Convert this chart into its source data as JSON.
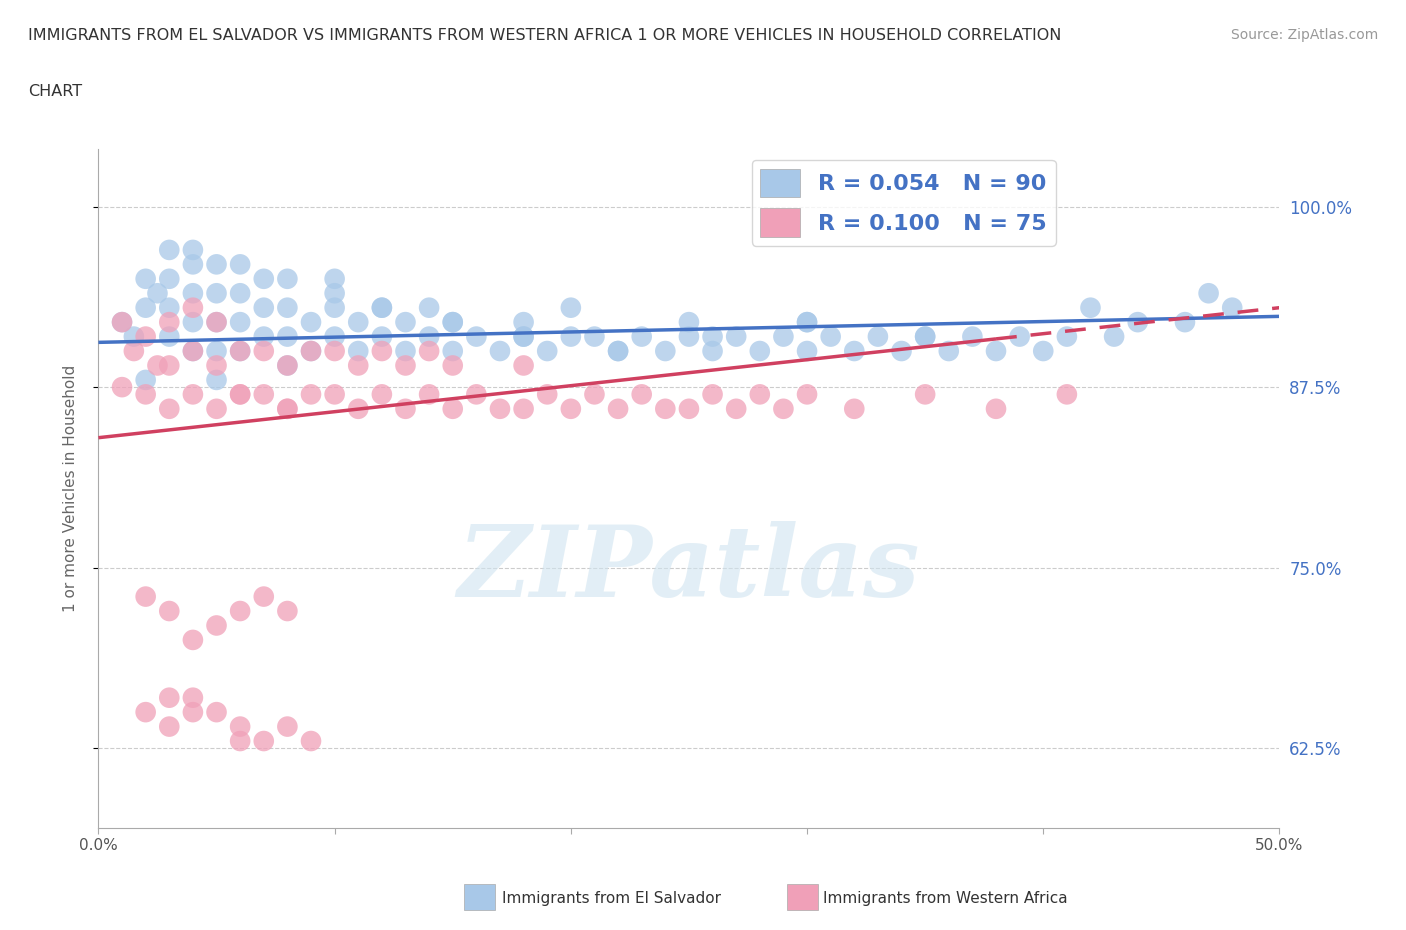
{
  "title_line1": "IMMIGRANTS FROM EL SALVADOR VS IMMIGRANTS FROM WESTERN AFRICA 1 OR MORE VEHICLES IN HOUSEHOLD CORRELATION",
  "title_line2": "CHART",
  "source_text": "Source: ZipAtlas.com",
  "ylabel": "1 or more Vehicles in Household",
  "xlim": [
    0.0,
    0.5
  ],
  "ylim": [
    0.57,
    1.04
  ],
  "xtick_positions": [
    0.0,
    0.1,
    0.2,
    0.3,
    0.4,
    0.5
  ],
  "xticklabels_show": [
    "0.0%",
    "",
    "",
    "",
    "",
    "50.0%"
  ],
  "ytick_positions": [
    0.625,
    0.75,
    0.875,
    1.0
  ],
  "ytick_labels": [
    "62.5%",
    "75.0%",
    "87.5%",
    "100.0%"
  ],
  "blue_R": 0.054,
  "blue_N": 90,
  "pink_R": 0.1,
  "pink_N": 75,
  "blue_color": "#a8c8e8",
  "pink_color": "#f0a0b8",
  "blue_line_color": "#4472c4",
  "pink_line_color": "#d04060",
  "legend_blue_label": "Immigrants from El Salvador",
  "legend_pink_label": "Immigrants from Western Africa",
  "watermark": "ZIPatlas",
  "blue_scatter_x": [
    0.01,
    0.015,
    0.02,
    0.02,
    0.025,
    0.03,
    0.03,
    0.03,
    0.03,
    0.04,
    0.04,
    0.04,
    0.04,
    0.05,
    0.05,
    0.05,
    0.05,
    0.05,
    0.06,
    0.06,
    0.06,
    0.07,
    0.07,
    0.07,
    0.08,
    0.08,
    0.08,
    0.09,
    0.09,
    0.1,
    0.1,
    0.1,
    0.11,
    0.11,
    0.12,
    0.12,
    0.13,
    0.13,
    0.14,
    0.14,
    0.15,
    0.15,
    0.16,
    0.17,
    0.18,
    0.18,
    0.19,
    0.2,
    0.2,
    0.21,
    0.22,
    0.23,
    0.24,
    0.25,
    0.25,
    0.26,
    0.27,
    0.28,
    0.29,
    0.3,
    0.3,
    0.31,
    0.32,
    0.33,
    0.34,
    0.35,
    0.36,
    0.37,
    0.38,
    0.39,
    0.4,
    0.41,
    0.43,
    0.44,
    0.46,
    0.48,
    0.02,
    0.04,
    0.06,
    0.08,
    0.1,
    0.12,
    0.15,
    0.18,
    0.22,
    0.26,
    0.3,
    0.35,
    0.42,
    0.47
  ],
  "blue_scatter_y": [
    0.92,
    0.91,
    0.95,
    0.93,
    0.94,
    0.91,
    0.93,
    0.95,
    0.97,
    0.9,
    0.92,
    0.94,
    0.96,
    0.88,
    0.9,
    0.92,
    0.94,
    0.96,
    0.9,
    0.92,
    0.94,
    0.91,
    0.93,
    0.95,
    0.89,
    0.91,
    0.93,
    0.9,
    0.92,
    0.91,
    0.93,
    0.95,
    0.9,
    0.92,
    0.91,
    0.93,
    0.9,
    0.92,
    0.91,
    0.93,
    0.9,
    0.92,
    0.91,
    0.9,
    0.92,
    0.91,
    0.9,
    0.91,
    0.93,
    0.91,
    0.9,
    0.91,
    0.9,
    0.91,
    0.92,
    0.9,
    0.91,
    0.9,
    0.91,
    0.92,
    0.9,
    0.91,
    0.9,
    0.91,
    0.9,
    0.91,
    0.9,
    0.91,
    0.9,
    0.91,
    0.9,
    0.91,
    0.91,
    0.92,
    0.92,
    0.93,
    0.88,
    0.97,
    0.96,
    0.95,
    0.94,
    0.93,
    0.92,
    0.91,
    0.9,
    0.91,
    0.92,
    0.91,
    0.93,
    0.94
  ],
  "pink_scatter_x": [
    0.01,
    0.01,
    0.015,
    0.02,
    0.02,
    0.025,
    0.03,
    0.03,
    0.03,
    0.04,
    0.04,
    0.04,
    0.05,
    0.05,
    0.05,
    0.06,
    0.06,
    0.06,
    0.07,
    0.07,
    0.08,
    0.08,
    0.08,
    0.09,
    0.09,
    0.1,
    0.1,
    0.11,
    0.11,
    0.12,
    0.12,
    0.13,
    0.13,
    0.14,
    0.14,
    0.15,
    0.15,
    0.16,
    0.17,
    0.18,
    0.18,
    0.19,
    0.2,
    0.21,
    0.22,
    0.23,
    0.24,
    0.25,
    0.26,
    0.27,
    0.28,
    0.29,
    0.3,
    0.32,
    0.35,
    0.38,
    0.41,
    0.02,
    0.03,
    0.04,
    0.05,
    0.06,
    0.07,
    0.08,
    0.02,
    0.03,
    0.03,
    0.04,
    0.04,
    0.05,
    0.06,
    0.06,
    0.07,
    0.08,
    0.09
  ],
  "pink_scatter_y": [
    0.875,
    0.92,
    0.9,
    0.87,
    0.91,
    0.89,
    0.86,
    0.89,
    0.92,
    0.87,
    0.9,
    0.93,
    0.86,
    0.89,
    0.92,
    0.87,
    0.9,
    0.87,
    0.87,
    0.9,
    0.86,
    0.89,
    0.86,
    0.87,
    0.9,
    0.87,
    0.9,
    0.86,
    0.89,
    0.87,
    0.9,
    0.86,
    0.89,
    0.87,
    0.9,
    0.86,
    0.89,
    0.87,
    0.86,
    0.89,
    0.86,
    0.87,
    0.86,
    0.87,
    0.86,
    0.87,
    0.86,
    0.86,
    0.87,
    0.86,
    0.87,
    0.86,
    0.87,
    0.86,
    0.87,
    0.86,
    0.87,
    0.73,
    0.72,
    0.7,
    0.71,
    0.72,
    0.73,
    0.72,
    0.65,
    0.66,
    0.64,
    0.65,
    0.66,
    0.65,
    0.63,
    0.64,
    0.63,
    0.64,
    0.63
  ],
  "blue_trendline_x0": 0.0,
  "blue_trendline_x1": 0.5,
  "blue_trendline_y0": 0.906,
  "blue_trendline_y1": 0.924,
  "pink_trendline_x0": 0.0,
  "pink_trendline_x1": 0.5,
  "pink_trendline_y0": 0.84,
  "pink_trendline_y1": 0.93
}
